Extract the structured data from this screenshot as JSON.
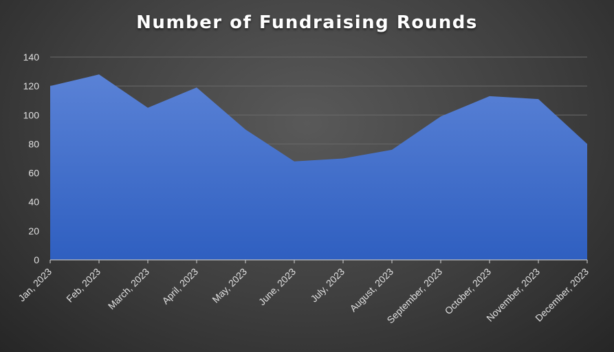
{
  "chart_data": {
    "type": "area",
    "title": "Number of Fundraising Rounds",
    "xlabel": "",
    "ylabel": "",
    "categories": [
      "Jan, 2023",
      "Feb, 2023",
      "March, 2023",
      "April, 2023",
      "May, 2023",
      "June, 2023",
      "July, 2023",
      "August, 2023",
      "September, 2023",
      "October, 2023",
      "November, 2023",
      "December, 2023"
    ],
    "series": [
      {
        "values": [
          120,
          128,
          105,
          119,
          90,
          68,
          70,
          76,
          99,
          113,
          111,
          80
        ]
      }
    ],
    "ylim": [
      0,
      140
    ],
    "yticks": [
      0,
      20,
      40,
      60,
      80,
      100,
      120,
      140
    ],
    "grid": true,
    "legend": "none",
    "colors": {
      "fill_top": "#5a82d6",
      "fill_bottom": "#2f5fc0",
      "gridline": "#6a6a6a",
      "axis": "#bfbfbf",
      "text": "#e0e0e0"
    }
  }
}
